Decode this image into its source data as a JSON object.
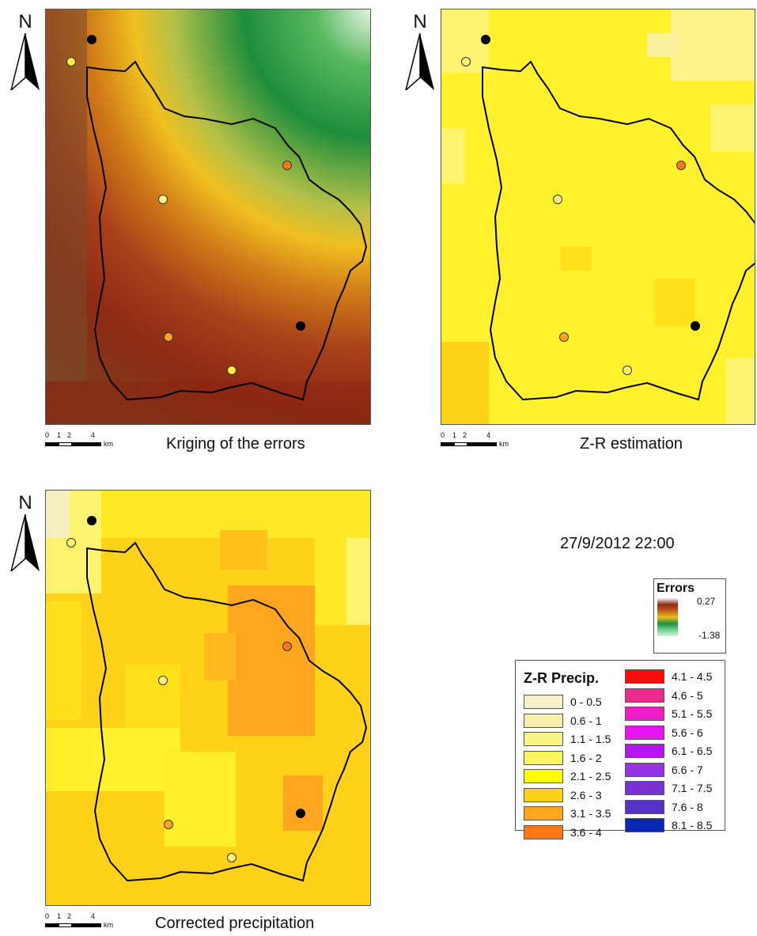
{
  "maps": [
    {
      "caption": "Kriging of the errors",
      "north": "N",
      "scale_labels": [
        "0",
        "1",
        "2",
        "4",
        "km"
      ]
    },
    {
      "caption": "Z-R estimation",
      "north": "N",
      "scale_labels": [
        "0",
        "1",
        "2",
        "4",
        "km"
      ]
    },
    {
      "caption": "Corrected precipitation",
      "north": "N",
      "scale_labels": [
        "0",
        "1",
        "2",
        "4",
        "km"
      ]
    }
  ],
  "datetime": "27/9/2012 22:00",
  "errors_legend": {
    "title": "Errors",
    "max": "0.27",
    "min": "-1.38",
    "ramp_colors": [
      "#f4f4f4",
      "#8b2a10",
      "#c06018",
      "#e8c020",
      "#208c3c",
      "#6cd08c",
      "#d4f4e4"
    ]
  },
  "precip_legend": {
    "title": "Z-R Precip.",
    "classes": [
      {
        "label": "0 - 0.5",
        "color": "#f5f0c8"
      },
      {
        "label": "0.6 - 1",
        "color": "#f8f0a8"
      },
      {
        "label": "1.1 - 1.5",
        "color": "#faf388"
      },
      {
        "label": "1.6 - 2",
        "color": "#fcf55c"
      },
      {
        "label": "2.1 - 2.5",
        "color": "#ffff00"
      },
      {
        "label": "2.6 - 3",
        "color": "#ffd21a"
      },
      {
        "label": "3.1 - 3.5",
        "color": "#ffa51e"
      },
      {
        "label": "3.6 - 4",
        "color": "#ff7814"
      },
      {
        "label": "4.1 - 4.5",
        "color": "#ff0a0a"
      },
      {
        "label": "4.6 - 5",
        "color": "#f0288c"
      },
      {
        "label": "5.1 - 5.5",
        "color": "#f01ec8"
      },
      {
        "label": "5.6 - 6",
        "color": "#e614f0"
      },
      {
        "label": "6.1 - 6.5",
        "color": "#b414f0"
      },
      {
        "label": "6.6 - 7",
        "color": "#9632e6"
      },
      {
        "label": "7.1 - 7.5",
        "color": "#7832d2"
      },
      {
        "label": "7.6 - 8",
        "color": "#5532c8"
      },
      {
        "label": "8.1 - 8.5",
        "color": "#0a28b4"
      }
    ]
  }
}
